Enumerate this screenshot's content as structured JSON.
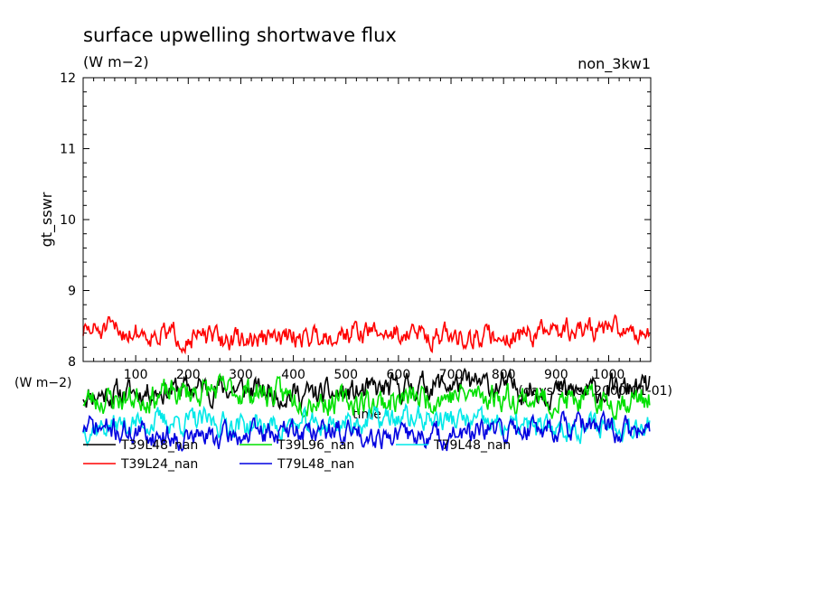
{
  "chart_data": {
    "type": "line",
    "title": "surface upwelling shortwave flux",
    "units": "(W m−2)",
    "run_label": "non_3kw1",
    "ylabel": "gt_sswr",
    "xlabel": "time",
    "x_unit_label": "(days since 2000-01-01)",
    "ylim": [
      8,
      12
    ],
    "xlim": [
      0,
      1080
    ],
    "yticks": [
      8,
      9,
      10,
      11,
      12
    ],
    "xticks": [
      100,
      200,
      300,
      400,
      500,
      600,
      700,
      800,
      900,
      1000
    ],
    "below_axis_unit": "(W m−2)",
    "series": [
      {
        "name": "T39L48_nan",
        "color": "#000000",
        "x_start": 0,
        "x_step": 2,
        "mean": 7.6,
        "amplitude": 0.16,
        "seed": 11,
        "points": 540
      },
      {
        "name": "T39L96_nan",
        "color": "#00e000",
        "x_start": 0,
        "x_step": 2,
        "mean": 7.5,
        "amplitude": 0.17,
        "seed": 23,
        "points": 540
      },
      {
        "name": "T79L48_nan",
        "color": "#00e8e8",
        "x_start": 0,
        "x_step": 2,
        "mean": 7.12,
        "amplitude": 0.15,
        "seed": 37,
        "points": 540
      },
      {
        "name": "T39L24_nan",
        "color": "#ff0000",
        "x_start": 0,
        "x_step": 2,
        "mean": 8.38,
        "amplitude": 0.14,
        "seed": 51,
        "points": 540
      },
      {
        "name": "T79L48_nan",
        "color": "#0000e0",
        "x_start": 0,
        "x_step": 2,
        "mean": 7.0,
        "amplitude": 0.15,
        "seed": 71,
        "points": 540
      }
    ]
  }
}
